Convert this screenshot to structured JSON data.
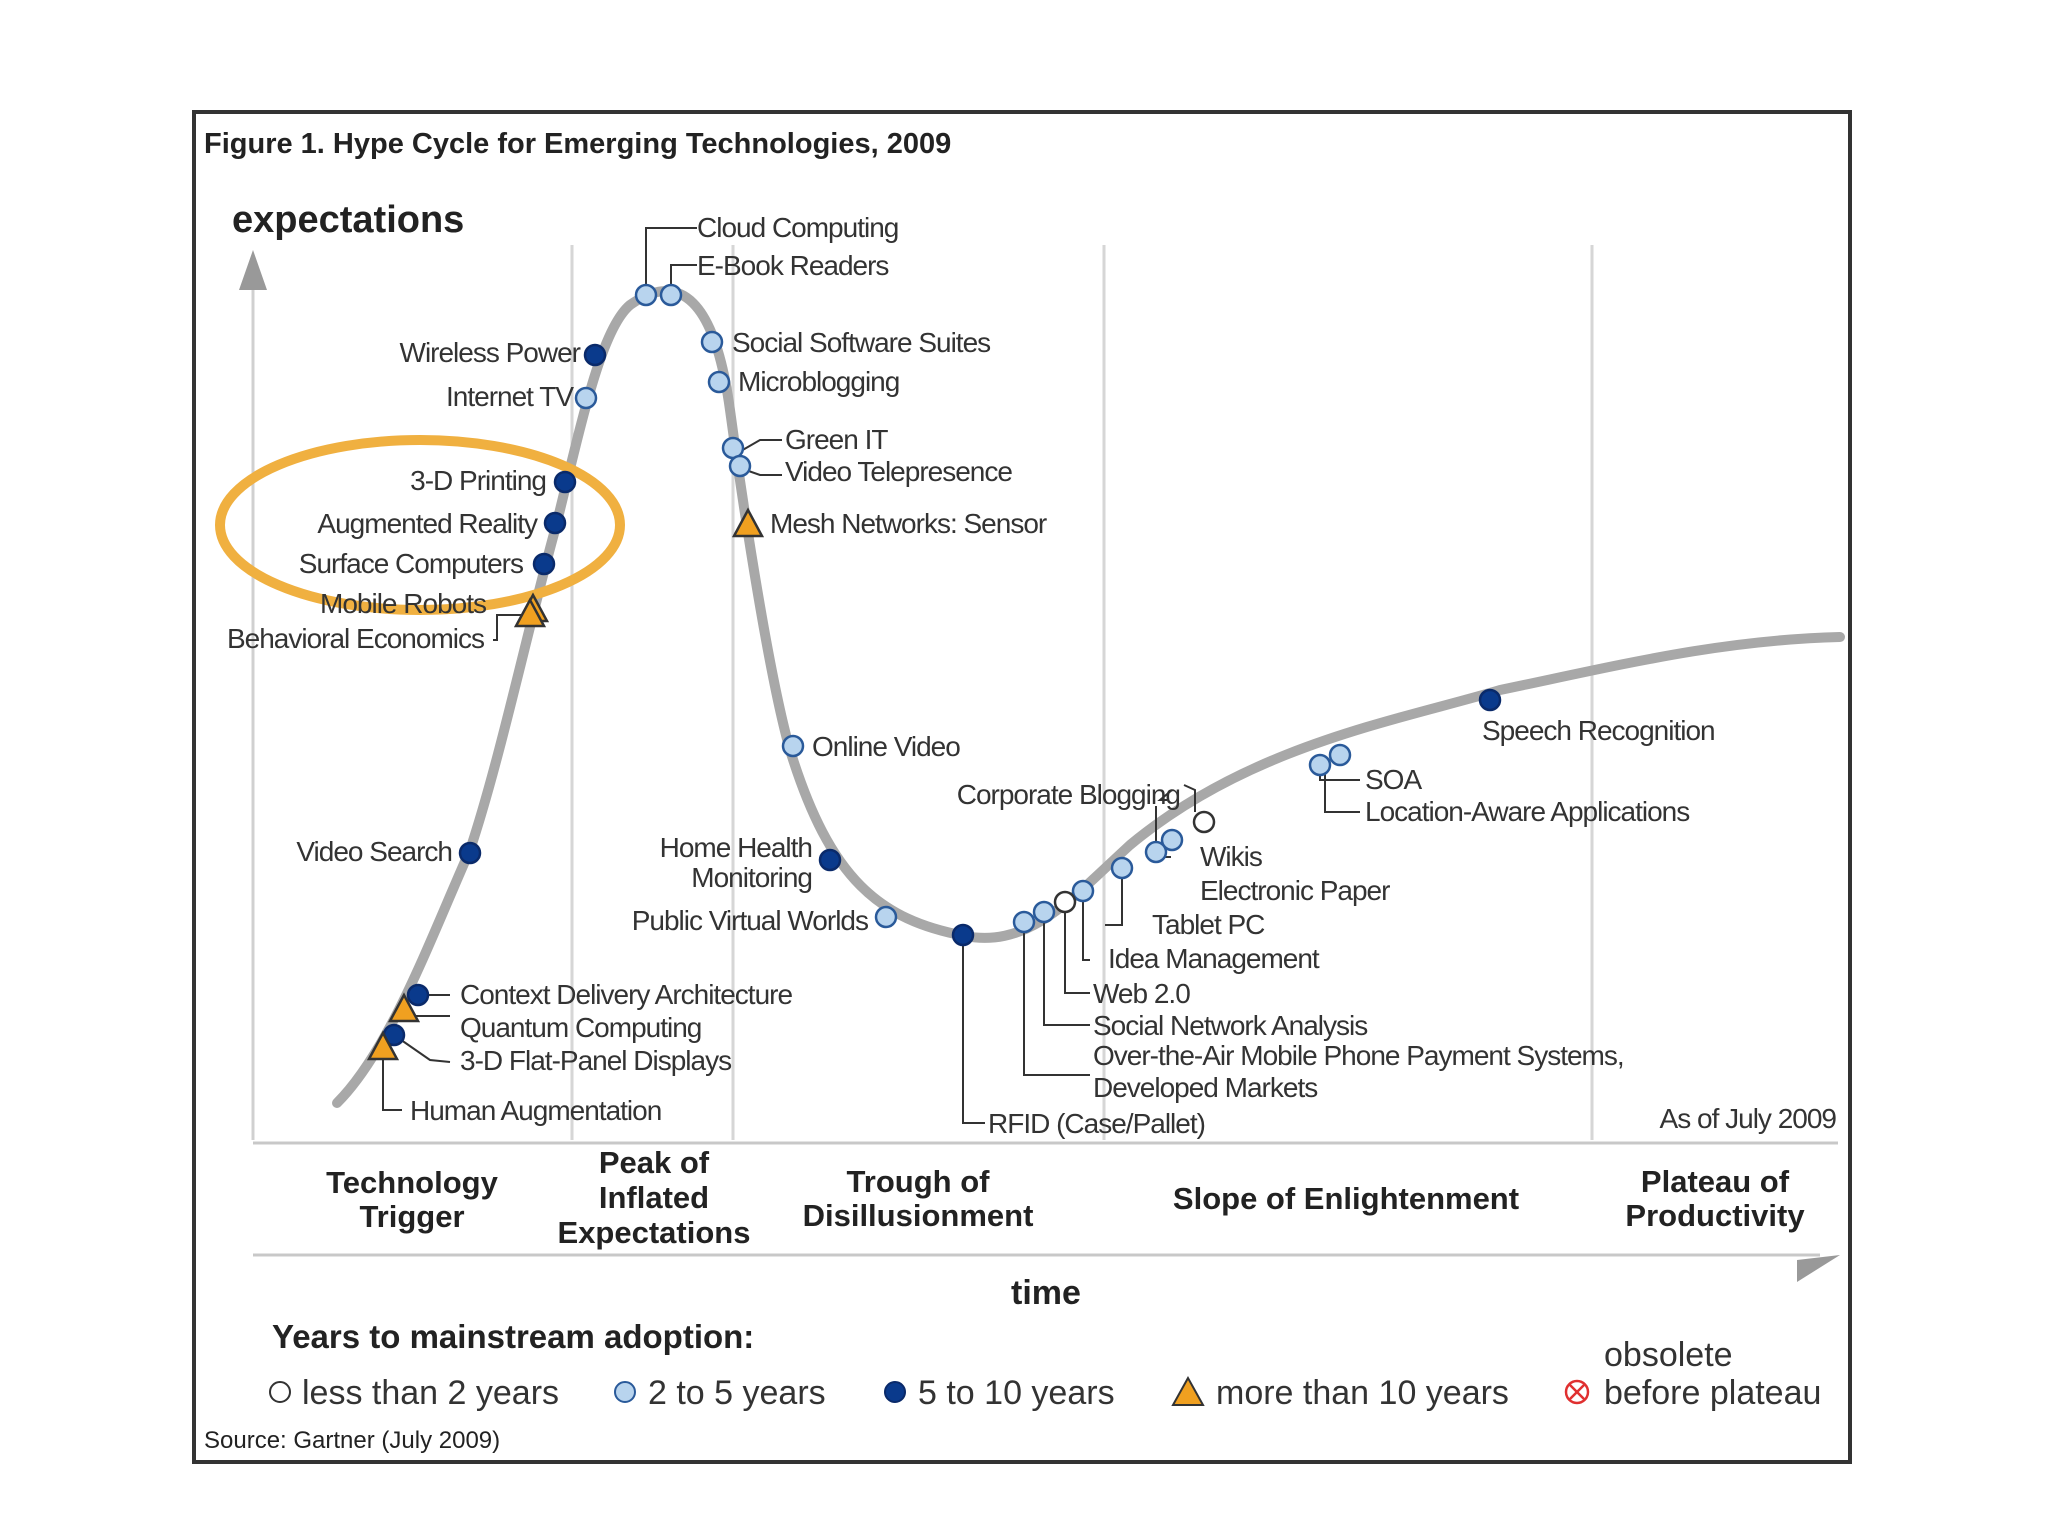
{
  "figure": {
    "title": "Figure 1. Hype Cycle for Emerging Technologies, 2009",
    "y_axis_label": "expectations",
    "x_axis_label": "time",
    "as_of": "As of July 2009",
    "source": "Source: Gartner (July 2009)",
    "highlight_color": "#f0b040"
  },
  "phases": [
    {
      "lines": [
        "Technology",
        "Trigger"
      ]
    },
    {
      "lines": [
        "Peak of",
        "Inflated",
        "Expectations"
      ]
    },
    {
      "lines": [
        "Trough of",
        "Disillusionment"
      ]
    },
    {
      "lines": [
        "Slope of Enlightenment"
      ]
    },
    {
      "lines": [
        "Plateau of",
        "Productivity"
      ]
    }
  ],
  "legend": {
    "title": "Years to mainstream adoption:",
    "items": [
      {
        "label": "less than 2 years",
        "marker": "circle-white"
      },
      {
        "label": "2 to 5 years",
        "marker": "circle-light-blue"
      },
      {
        "label": "5 to 10 years",
        "marker": "circle-dark-blue"
      },
      {
        "label": "more than 10 years",
        "marker": "triangle-orange"
      },
      {
        "label_line1": "obsolete",
        "label_line2": "before plateau",
        "marker": "circle-crossed-red"
      }
    ]
  },
  "colors": {
    "curve": "#a8a8a8",
    "white": "#ffffff",
    "light_blue": "#b8d4ee",
    "dark_blue": "#0a3a8c",
    "orange": "#f0a020",
    "red": "#e03030"
  },
  "technologies": [
    {
      "name": "Cloud Computing",
      "adoption": "2 to 5 years"
    },
    {
      "name": "E-Book Readers",
      "adoption": "2 to 5 years"
    },
    {
      "name": "Wireless Power",
      "adoption": "5 to 10 years"
    },
    {
      "name": "Internet TV",
      "adoption": "2 to 5 years"
    },
    {
      "name": "Social Software Suites",
      "adoption": "2 to 5 years"
    },
    {
      "name": "Microblogging",
      "adoption": "2 to 5 years"
    },
    {
      "name": "Green IT",
      "adoption": "2 to 5 years"
    },
    {
      "name": "Video Telepresence",
      "adoption": "2 to 5 years"
    },
    {
      "name": "3-D Printing",
      "adoption": "5 to 10 years"
    },
    {
      "name": "Augmented Reality",
      "adoption": "5 to 10 years"
    },
    {
      "name": "Mesh Networks: Sensor",
      "adoption": "more than 10 years"
    },
    {
      "name": "Surface Computers",
      "adoption": "5 to 10 years"
    },
    {
      "name": "Mobile Robots",
      "adoption": "more than 10 years"
    },
    {
      "name": "Behavioral Economics",
      "adoption": "more than 10 years"
    },
    {
      "name": "Online Video",
      "adoption": "2 to 5 years"
    },
    {
      "name": "Video Search",
      "adoption": "5 to 10 years"
    },
    {
      "name": "Home Health Monitoring",
      "adoption": "5 to 10 years"
    },
    {
      "name": "Public Virtual Worlds",
      "adoption": "2 to 5 years"
    },
    {
      "name": "Context Delivery Architecture",
      "adoption": "5 to 10 years"
    },
    {
      "name": "Quantum Computing",
      "adoption": "more than 10 years"
    },
    {
      "name": "3-D Flat-Panel Displays",
      "adoption": "5 to 10 years"
    },
    {
      "name": "Human Augmentation",
      "adoption": "more than 10 years"
    },
    {
      "name": "Speech Recognition",
      "adoption": "5 to 10 years"
    },
    {
      "name": "SOA",
      "adoption": "2 to 5 years"
    },
    {
      "name": "Location-Aware Applications",
      "adoption": "2 to 5 years"
    },
    {
      "name": "Corporate Blogging",
      "adoption": "less than 2 years"
    },
    {
      "name": "Wikis",
      "adoption": "2 to 5 years"
    },
    {
      "name": "Electronic Paper",
      "adoption": "2 to 5 years"
    },
    {
      "name": "Tablet PC",
      "adoption": "2 to 5 years"
    },
    {
      "name": "Idea Management",
      "adoption": "2 to 5 years"
    },
    {
      "name": "Web 2.0",
      "adoption": "less than 2 years"
    },
    {
      "name": "Social Network Analysis",
      "adoption": "2 to 5 years"
    },
    {
      "name": "Over-the-Air Mobile Phone Payment Systems, Developed Markets",
      "line1": "Over-the-Air Mobile Phone Payment Systems,",
      "line2": "Developed Markets",
      "adoption": "2 to 5 years"
    },
    {
      "name": "RFID (Case/Pallet)",
      "adoption": "5 to 10 years"
    }
  ]
}
